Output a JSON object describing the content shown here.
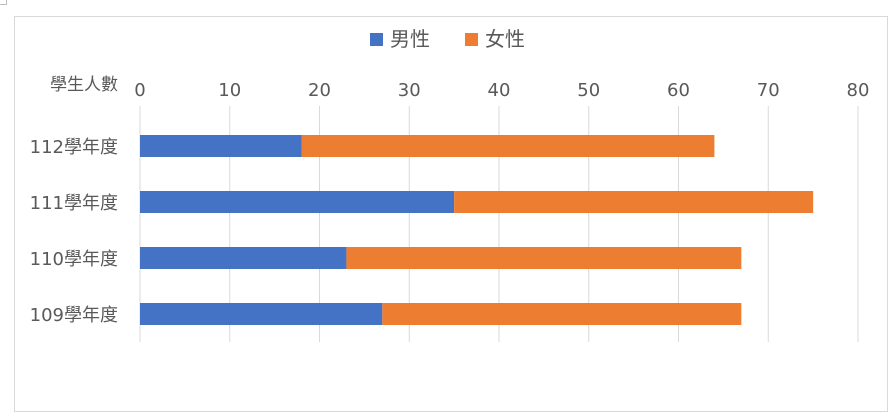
{
  "chart_data": {
    "type": "bar",
    "orientation": "horizontal",
    "stacked": true,
    "categories": [
      "112學年度",
      "111學年度",
      "110學年度",
      "109學年度"
    ],
    "series": [
      {
        "name": "男性",
        "values": [
          18,
          35,
          23,
          27
        ],
        "color": "#4472c4"
      },
      {
        "name": "女性",
        "values": [
          46,
          40,
          44,
          40
        ],
        "color": "#ed7d31"
      }
    ],
    "xlabel": "學生人數",
    "ylabel": "",
    "xlim": [
      0,
      80
    ],
    "xticks": [
      0,
      10,
      20,
      30,
      40,
      50,
      60,
      70,
      80
    ],
    "axis_position": "top",
    "grid": true,
    "legend": "top-center"
  }
}
